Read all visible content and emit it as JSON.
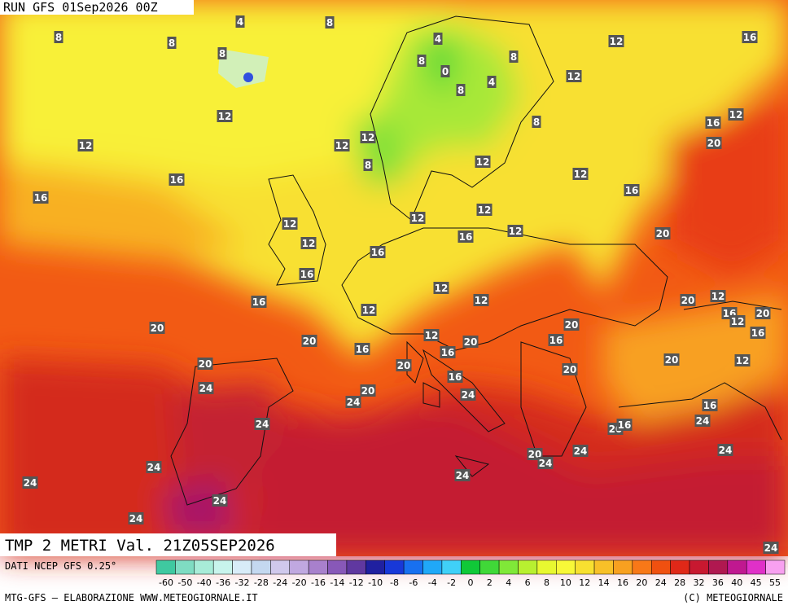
{
  "header": {
    "run": "RUN GFS 01Sep2026 00Z"
  },
  "map": {
    "field_title": "TMP 2 METRI Val. 21Z05SEP2026",
    "labels": [
      8,
      8,
      4,
      8,
      8,
      4,
      8,
      0,
      8,
      4,
      8,
      12,
      16,
      12,
      12,
      12,
      12,
      12,
      8,
      8,
      16,
      12,
      20,
      16,
      16,
      12,
      12,
      16,
      12,
      12,
      12,
      12,
      12,
      16,
      16,
      20,
      16,
      12,
      16,
      12,
      12,
      20,
      12,
      16,
      20,
      12,
      16,
      20,
      20,
      12,
      20,
      16,
      20,
      16,
      16,
      20,
      12,
      20,
      20,
      20,
      16,
      24,
      20,
      24,
      24,
      16,
      24,
      20,
      16,
      24,
      24,
      20,
      24,
      24,
      24,
      24,
      24,
      24,
      24,
      24
    ]
  },
  "legend": {
    "source": "DATI NCEP GFS 0.25°",
    "ticks": [
      -60,
      -50,
      -40,
      -36,
      -32,
      -28,
      -24,
      -20,
      -16,
      -14,
      -12,
      -10,
      -8,
      -6,
      -4,
      -2,
      0,
      2,
      4,
      6,
      8,
      10,
      12,
      14,
      16,
      20,
      24,
      28,
      32,
      36,
      40,
      45,
      55
    ],
    "colors": [
      "#3fc9a0",
      "#7fdcc2",
      "#a8ecd8",
      "#c8f4ec",
      "#d8ecf8",
      "#c4d8f0",
      "#d0c8ec",
      "#c0a8e0",
      "#a880cc",
      "#8858b8",
      "#6038a0",
      "#2020a0",
      "#1838d8",
      "#1870f0",
      "#20a8f8",
      "#40d0f8",
      "#10c838",
      "#40d838",
      "#80e838",
      "#b8f030",
      "#e8f830",
      "#f8f838",
      "#f8e030",
      "#f8c028",
      "#f8a020",
      "#f87818",
      "#f05010",
      "#e02818",
      "#c81830",
      "#b01850",
      "#c01890",
      "#e030c8",
      "#f8a0f0"
    ]
  },
  "footer": {
    "left": "MTG-GFS – ELABORAZIONE WWW.METEOGIORNALE.IT",
    "right": "(C) METEOGIORNALE"
  }
}
